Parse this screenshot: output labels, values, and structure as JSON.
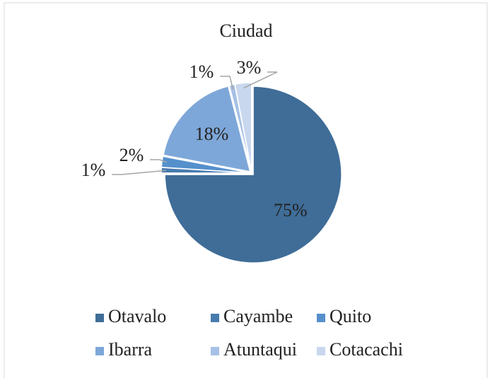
{
  "chart_data": {
    "type": "pie",
    "title": "Ciudad",
    "categories": [
      "Otavalo",
      "Cayambe",
      "Quito",
      "Ibarra",
      "Atuntaqui",
      "Cotacachi"
    ],
    "values": [
      75,
      1,
      2,
      18,
      1,
      3
    ],
    "value_labels": [
      "75%",
      "1%",
      "2%",
      "18%",
      "1%",
      "3%"
    ],
    "colors": [
      "#3f6d98",
      "#477bae",
      "#5590cc",
      "#7ea7d9",
      "#a6c1e5",
      "#c8d7ee"
    ],
    "legend": "bottom"
  }
}
